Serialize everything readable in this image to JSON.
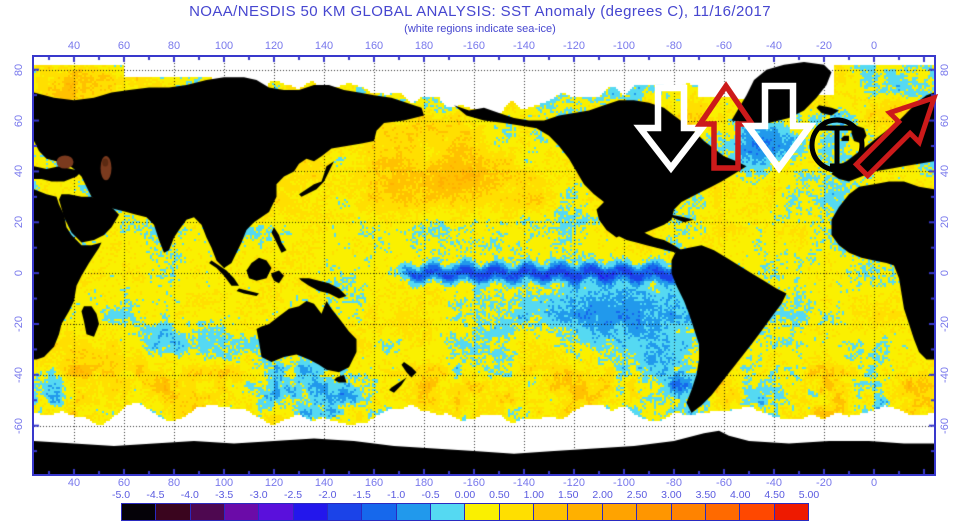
{
  "title": "NOAA/NESDIS 50 KM GLOBAL ANALYSIS: SST Anomaly (degrees C), 11/16/2017",
  "subtitle": "(white regions indicate sea-ice)",
  "colors": {
    "title_text": "#4646d0",
    "axis_label_text": "#7878ec",
    "frame": "#3838cc",
    "land": "#000000",
    "sea_ice": "#ffffff",
    "background": "#ffffff",
    "graticule": "#1a1a1a",
    "inland_sea_spot": "#7a3a1e"
  },
  "axes": {
    "lon_labels": [
      "40",
      "60",
      "80",
      "100",
      "120",
      "140",
      "160",
      "180",
      "-160",
      "-140",
      "-120",
      "-100",
      "-80",
      "-60",
      "-40",
      "-20",
      "0"
    ],
    "lat_labels": [
      "80",
      "60",
      "40",
      "20",
      "0",
      "-20",
      "-40",
      "-60"
    ]
  },
  "colorbar": {
    "tick_labels": [
      "-5.0",
      "-4.5",
      "-4.0",
      "-3.5",
      "-3.0",
      "-2.5",
      "-2.0",
      "-1.5",
      "-1.0",
      "-0.5",
      "0.00",
      "0.50",
      "1.00",
      "1.50",
      "2.00",
      "2.50",
      "3.00",
      "3.50",
      "4.00",
      "4.50",
      "5.00"
    ],
    "cell_colors": [
      "#050208",
      "#3a051e",
      "#4e0850",
      "#6b0ba8",
      "#5a10dc",
      "#2317ec",
      "#1b43e8",
      "#1668ec",
      "#2199ec",
      "#55d9f2",
      "#faf000",
      "#ffdf00",
      "#ffc100",
      "#ffb000",
      "#ffa300",
      "#ff9600",
      "#ff8300",
      "#ff6a00",
      "#ff4800",
      "#ee1a00"
    ]
  },
  "annotations": [
    {
      "name": "white-down-arrow-left",
      "label": "white downward arrow",
      "color": "#ffffff"
    },
    {
      "name": "red-up-arrow",
      "label": "red upward arrow",
      "color": "#cc1a1a"
    },
    {
      "name": "white-down-arrow-right",
      "label": "white downward arrow",
      "color": "#ffffff"
    },
    {
      "name": "black-circle-t",
      "label": "black circled T symbol",
      "color": "#000000"
    },
    {
      "name": "red-northeast-arrow",
      "label": "red northeast arrow",
      "color": "#cc1a1a"
    }
  ]
}
